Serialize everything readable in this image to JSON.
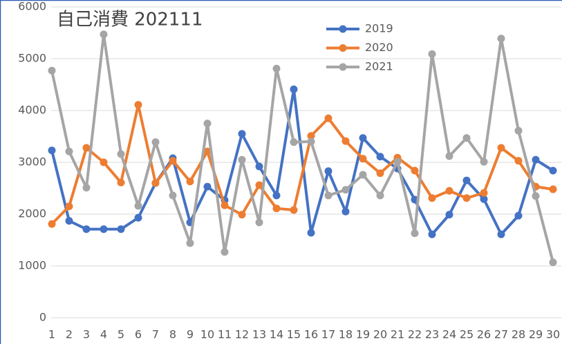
{
  "chart_data": {
    "type": "line",
    "title": "自己消費 202111",
    "categories": [
      1,
      2,
      3,
      4,
      5,
      6,
      7,
      8,
      9,
      10,
      11,
      12,
      13,
      14,
      15,
      16,
      17,
      18,
      19,
      20,
      21,
      22,
      23,
      24,
      25,
      26,
      27,
      28,
      29,
      30
    ],
    "series": [
      {
        "name": "2019",
        "color": "#4472c4",
        "values": [
          3230,
          1870,
          1710,
          1710,
          1710,
          1930,
          2600,
          3080,
          1840,
          2530,
          2270,
          3550,
          2920,
          2360,
          4410,
          1640,
          2830,
          2050,
          3470,
          3110,
          2880,
          2280,
          1610,
          1990,
          2650,
          2290,
          1610,
          1970,
          3050,
          2840
        ]
      },
      {
        "name": "2020",
        "color": "#ed7d31",
        "values": [
          1810,
          2150,
          3280,
          3000,
          2610,
          4110,
          2600,
          3030,
          2630,
          3210,
          2170,
          1990,
          2560,
          2110,
          2080,
          3510,
          3850,
          3410,
          3070,
          2790,
          3090,
          2840,
          2310,
          2450,
          2310,
          2410,
          3280,
          3030,
          2530,
          2480
        ]
      },
      {
        "name": "2021",
        "color": "#a5a5a5",
        "values": [
          4770,
          3210,
          2510,
          5470,
          3160,
          2160,
          3390,
          2360,
          1440,
          3750,
          1270,
          3050,
          1840,
          4810,
          3390,
          3400,
          2360,
          2470,
          2760,
          2360,
          3010,
          1630,
          5090,
          3120,
          3470,
          3010,
          5390,
          3610,
          2350,
          1070
        ]
      }
    ],
    "ylim": [
      0,
      6000
    ],
    "yticks": [
      0,
      1000,
      2000,
      3000,
      4000,
      5000,
      6000
    ],
    "grid": true
  }
}
